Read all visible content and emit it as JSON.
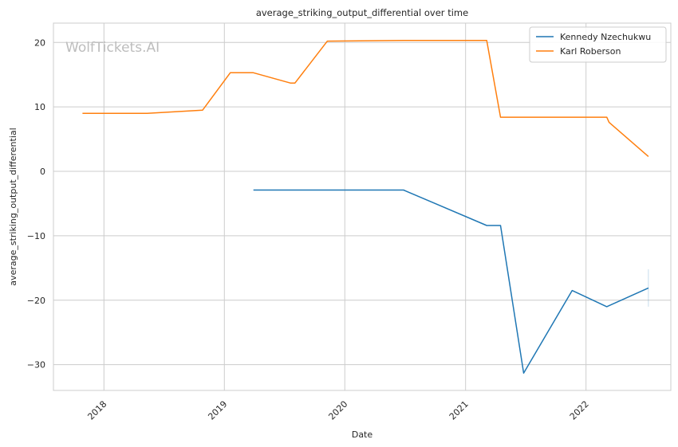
{
  "chart_data": {
    "type": "line",
    "title": "average_striking_output_differential over time",
    "xlabel": "Date",
    "ylabel": "average_striking_output_differential",
    "watermark": "WolfTickets.AI",
    "xlim": [
      "2017-08-01",
      "2022-09-15"
    ],
    "ylim": [
      -34,
      23
    ],
    "x_ticks": [
      "2018-01-01",
      "2019-01-01",
      "2020-01-01",
      "2021-01-01",
      "2022-01-01"
    ],
    "x_tick_labels": [
      "2018",
      "2019",
      "2020",
      "2021",
      "2022"
    ],
    "y_ticks": [
      -30,
      -20,
      -10,
      0,
      10,
      20
    ],
    "y_tick_labels": [
      "−30",
      "−20",
      "−10",
      "0",
      "10",
      "20"
    ],
    "grid": true,
    "legend_position": "top-right",
    "series": [
      {
        "name": "Kennedy Nzechukwu",
        "color": "#1f77b4",
        "points": [
          {
            "x": "2019-03-30",
            "y": -2.9
          },
          {
            "x": "2020-06-27",
            "y": -2.9
          },
          {
            "x": "2021-03-06",
            "y": -8.4
          },
          {
            "x": "2021-04-17",
            "y": -8.4
          },
          {
            "x": "2021-06-26",
            "y": -31.3
          },
          {
            "x": "2021-11-20",
            "y": -18.5
          },
          {
            "x": "2022-03-05",
            "y": -21.0
          },
          {
            "x": "2022-07-09",
            "y": -18.1
          }
        ],
        "error_bar": {
          "x": "2022-07-09",
          "low": -21.0,
          "high": -15.2
        }
      },
      {
        "name": "Karl Roberson",
        "color": "#ff7f0e",
        "points": [
          {
            "x": "2017-10-28",
            "y": 9.0
          },
          {
            "x": "2018-05-12",
            "y": 9.0
          },
          {
            "x": "2018-10-27",
            "y": 9.5
          },
          {
            "x": "2019-01-19",
            "y": 15.3
          },
          {
            "x": "2019-03-30",
            "y": 15.3
          },
          {
            "x": "2019-07-20",
            "y": 13.7
          },
          {
            "x": "2019-08-03",
            "y": 13.7
          },
          {
            "x": "2019-11-09",
            "y": 20.2
          },
          {
            "x": "2020-06-27",
            "y": 20.3
          },
          {
            "x": "2021-03-06",
            "y": 20.3
          },
          {
            "x": "2021-04-17",
            "y": 8.4
          },
          {
            "x": "2022-03-05",
            "y": 8.4
          },
          {
            "x": "2022-03-12",
            "y": 7.6
          },
          {
            "x": "2022-07-09",
            "y": 2.3
          }
        ]
      }
    ]
  }
}
